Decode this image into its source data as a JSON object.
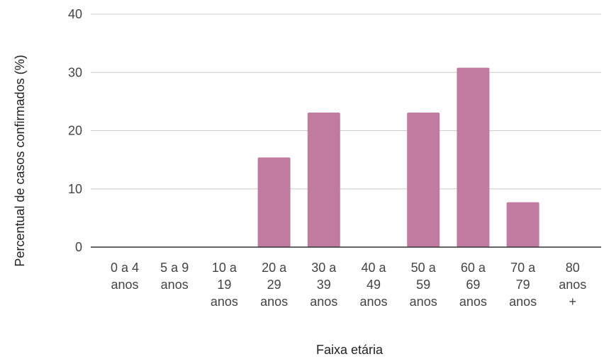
{
  "chart_data": {
    "type": "bar",
    "categories": [
      [
        "0 a 4",
        "anos"
      ],
      [
        "5 a 9",
        "anos"
      ],
      [
        "10 a",
        "19",
        "anos"
      ],
      [
        "20 a",
        "29",
        "anos"
      ],
      [
        "30 a",
        "39",
        "anos"
      ],
      [
        "40 a",
        "49",
        "anos"
      ],
      [
        "50 a",
        "59",
        "anos"
      ],
      [
        "60 a",
        "69",
        "anos"
      ],
      [
        "70 a",
        "79",
        "anos"
      ],
      [
        "80",
        "anos",
        "+"
      ]
    ],
    "values": [
      0,
      0,
      0,
      15.4,
      23.1,
      0,
      23.1,
      30.8,
      7.7,
      0
    ],
    "xlabel": "Faixa etária",
    "ylabel": "Percentual de casos confirmados (%)",
    "ylim": [
      0,
      40
    ],
    "yticks": [
      "0",
      "10",
      "20",
      "30",
      "40"
    ],
    "grid": true,
    "bar_color": "#c27ba0",
    "legend": "none"
  }
}
